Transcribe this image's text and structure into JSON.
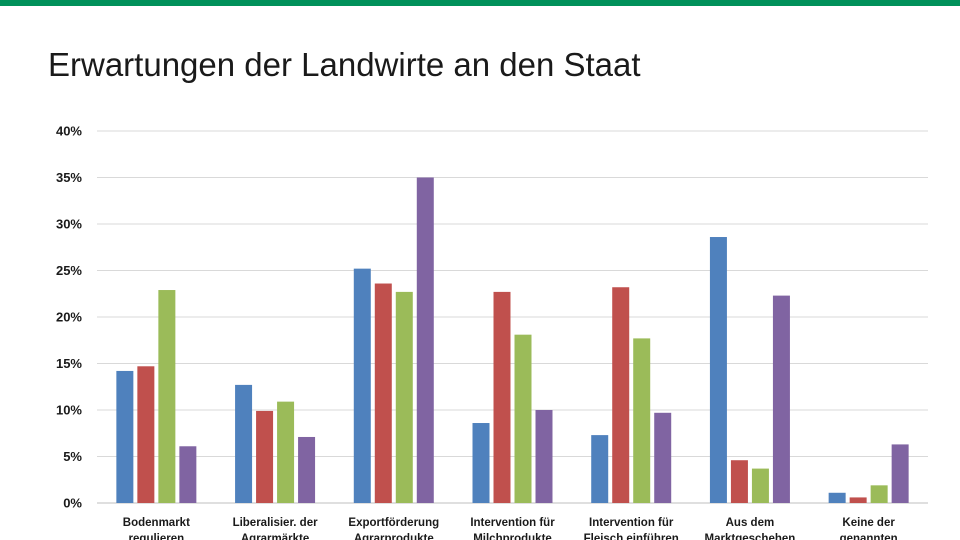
{
  "title": "Erwartungen der Landwirte an den Staat",
  "colors": {
    "accent_bar": "#00915a",
    "grid": "#d9d9d9",
    "text": "#1a1a1a"
  },
  "chart_data": {
    "type": "bar",
    "title": "Erwartungen der Landwirte an den Staat",
    "xlabel": "",
    "ylabel": "",
    "ylim": [
      0,
      40
    ],
    "yticks": [
      "0%",
      "5%",
      "10%",
      "15%",
      "20%",
      "25%",
      "30%",
      "35%",
      "40%"
    ],
    "grid": true,
    "legend": "none",
    "categories": [
      [
        "Bodenmarkt",
        "regulieren"
      ],
      [
        "Liberalisier. der",
        "Agrarmärkte"
      ],
      [
        "Exportförderung",
        "Agrarprodukte"
      ],
      [
        "Intervention für",
        "Milchprodukte"
      ],
      [
        "Intervention für",
        "Fleisch einführen"
      ],
      [
        "Aus dem",
        "Marktgeschehen"
      ],
      [
        "Keine der",
        "genannten"
      ]
    ],
    "series": [
      {
        "color": "#4f81bd",
        "values": [
          14.2,
          12.7,
          25.2,
          8.6,
          7.3,
          28.6,
          1.1
        ]
      },
      {
        "color": "#c0504d",
        "values": [
          14.7,
          9.9,
          23.6,
          22.7,
          23.2,
          4.6,
          0.6
        ]
      },
      {
        "color": "#9bbb59",
        "values": [
          22.9,
          10.9,
          22.7,
          18.1,
          17.7,
          3.7,
          1.9
        ]
      },
      {
        "color": "#8064a2",
        "values": [
          6.1,
          7.1,
          35.0,
          10.0,
          9.7,
          22.3,
          6.3
        ]
      }
    ]
  }
}
